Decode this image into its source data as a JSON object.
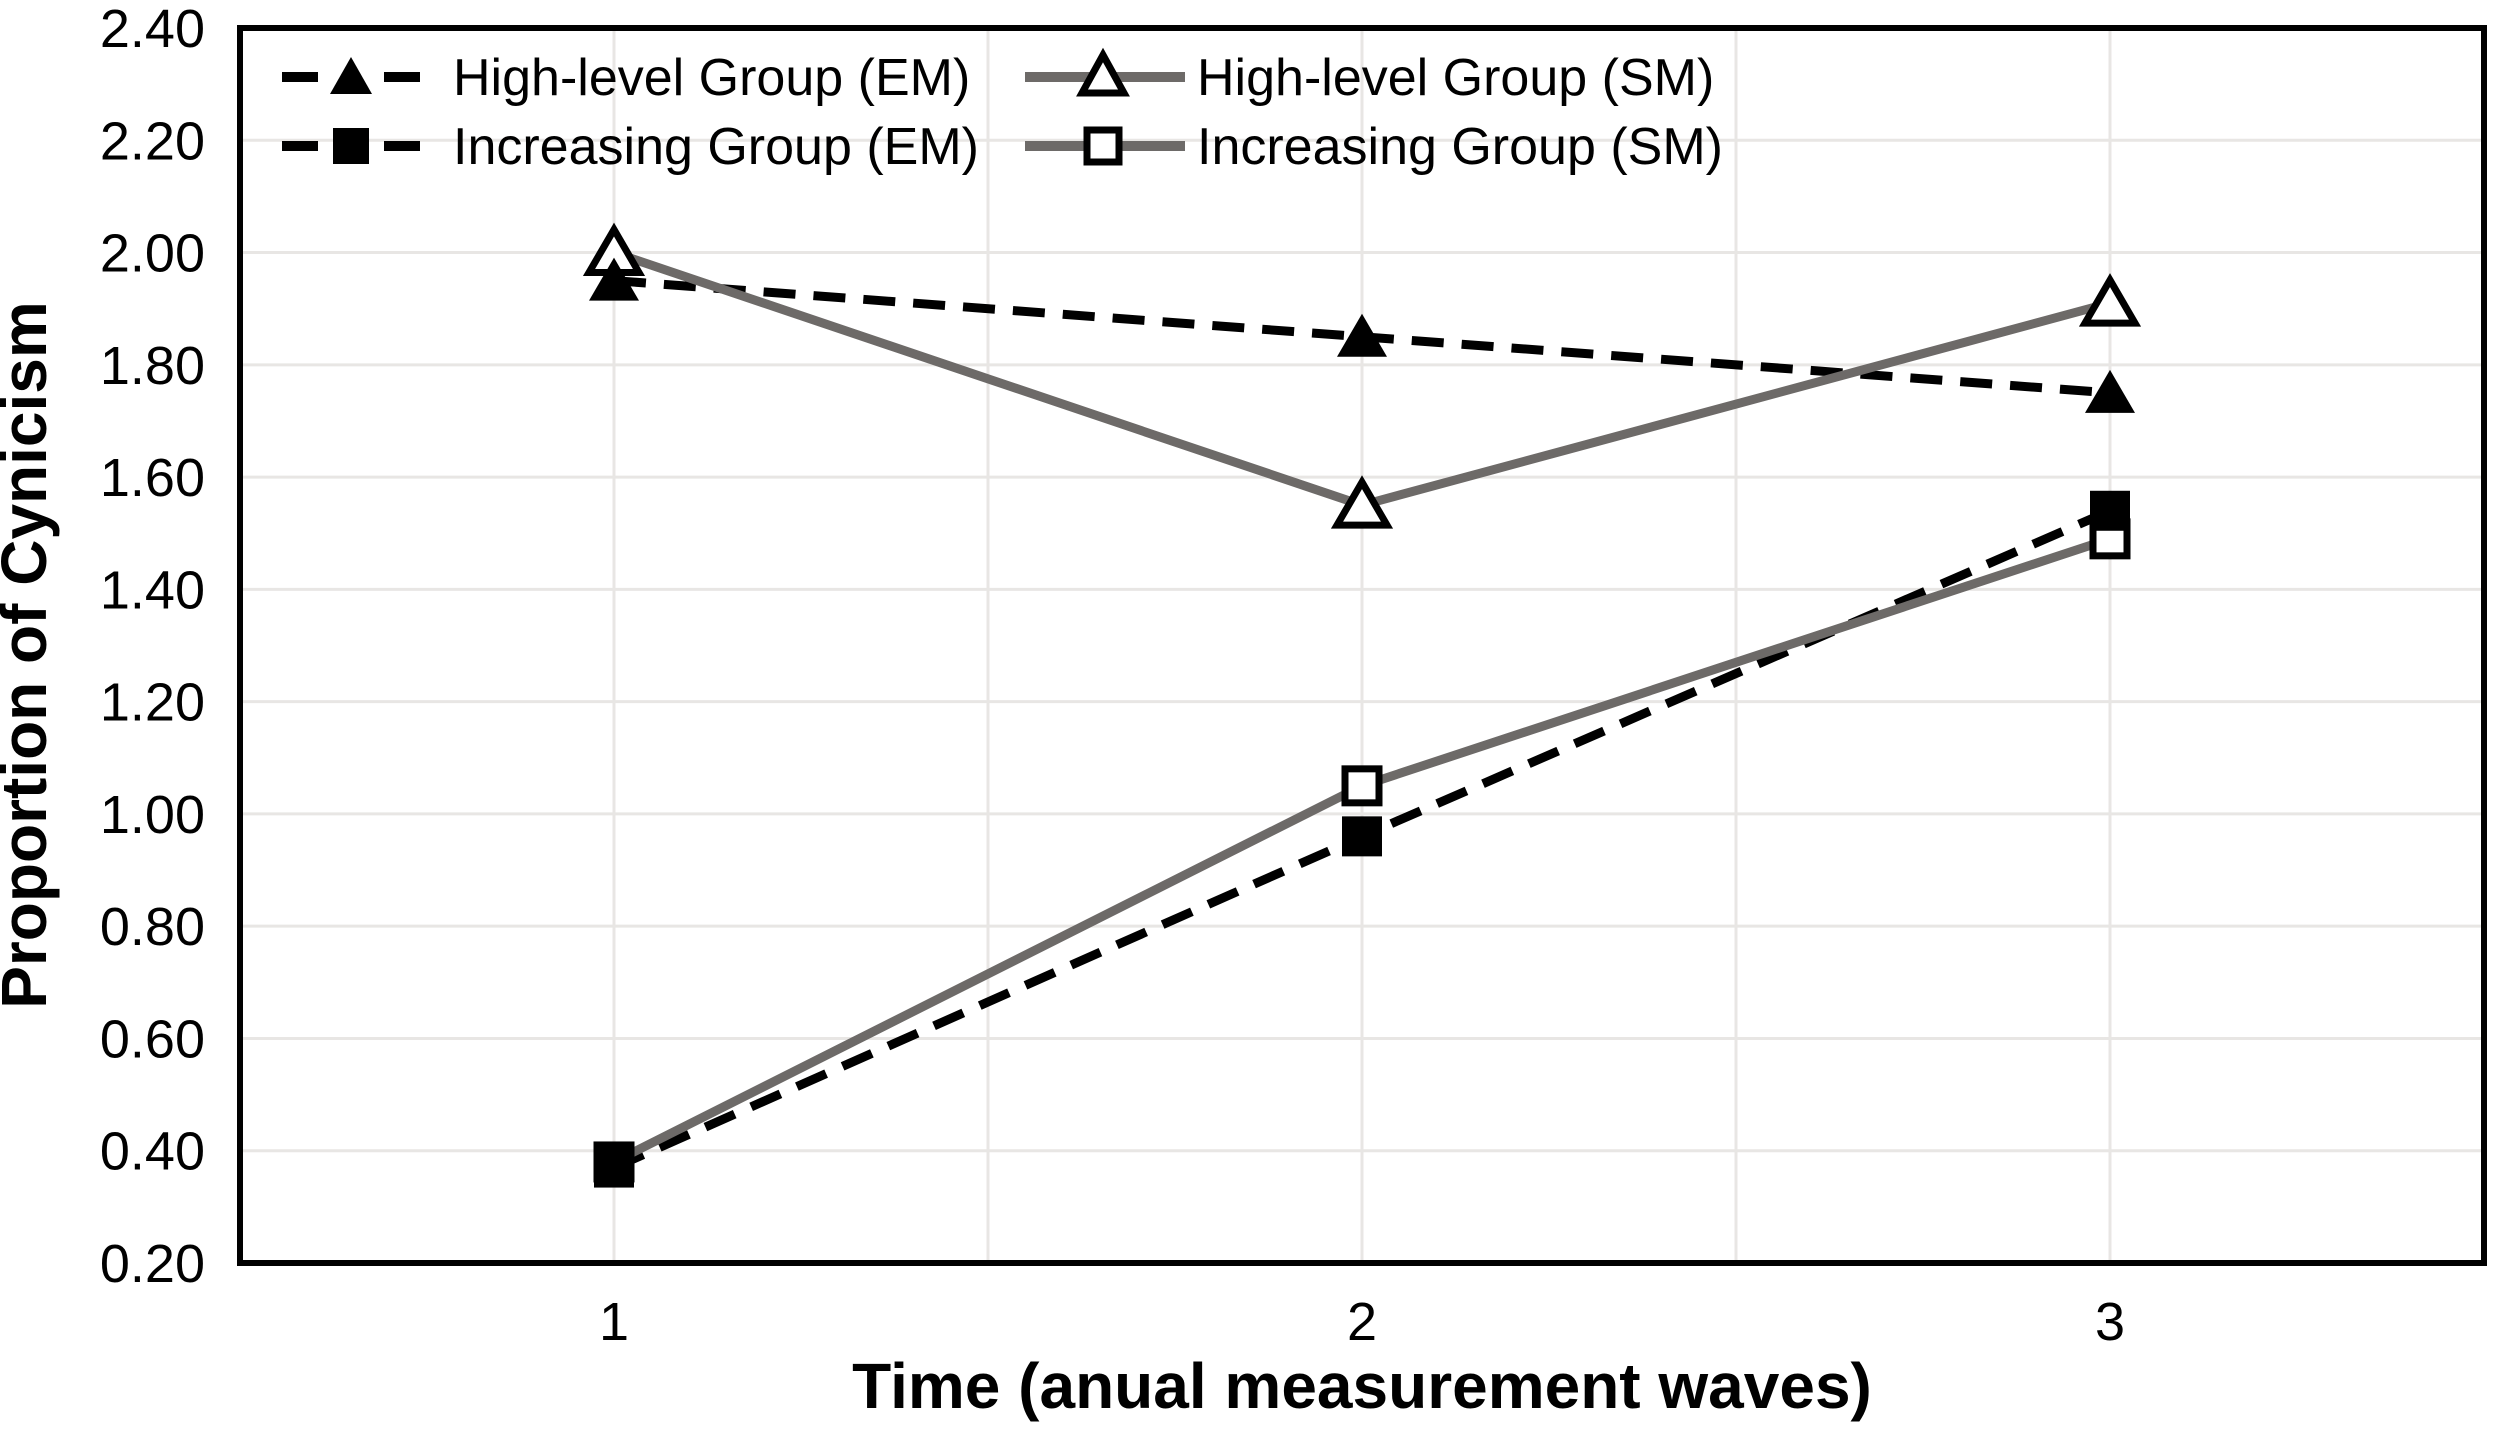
{
  "chart_data": {
    "type": "line",
    "title": "",
    "xlabel": "Time (anual measurement waves)",
    "ylabel": "Proportion of Cynicism",
    "x_categories": [
      "1",
      "2",
      "3"
    ],
    "ylim": [
      0.2,
      2.4
    ],
    "ytick_step": 0.2,
    "yticks": [
      "0.20",
      "0.40",
      "0.60",
      "0.80",
      "1.00",
      "1.20",
      "1.40",
      "1.60",
      "1.80",
      "2.00",
      "2.20",
      "2.40"
    ],
    "grid": {
      "horizontal": true,
      "vertical": true,
      "color": "#e8e6e4"
    },
    "legend_position": "top-left inside plot area, 2 columns x 2 rows",
    "series": [
      {
        "name": "High-level Group (EM)",
        "values": [
          1.95,
          1.85,
          1.75
        ],
        "line": "dashed",
        "color": "#000000",
        "marker": "filled-triangle"
      },
      {
        "name": "Increasing Group (EM)",
        "values": [
          0.37,
          0.96,
          1.54
        ],
        "line": "dashed",
        "color": "#000000",
        "marker": "filled-square"
      },
      {
        "name": "High-level Group (SM)",
        "values": [
          2.0,
          1.55,
          1.91
        ],
        "line": "solid",
        "color": "#6d6a68",
        "marker": "open-triangle"
      },
      {
        "name": "Increasing Group (SM)",
        "values": [
          0.38,
          1.05,
          1.49
        ],
        "line": "solid",
        "color": "#6d6a68",
        "marker": "open-square"
      }
    ],
    "colors": {
      "em_line": "#000000",
      "sm_line": "#6d6a68",
      "marker_outline": "#000000",
      "gridline": "#e8e6e4",
      "axis_border": "#000000",
      "background": "#ffffff"
    }
  }
}
